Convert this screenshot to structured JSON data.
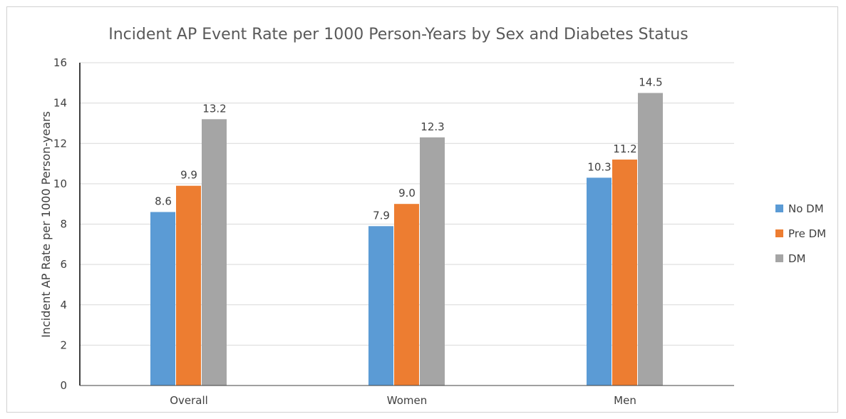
{
  "chart_data": {
    "type": "bar",
    "title": "Incident AP Event Rate per 1000 Person-Years by Sex and Diabetes Status",
    "xlabel": "",
    "ylabel": "Incident AP Rate per 1000 Person-years",
    "categories": [
      "Overall",
      "Women",
      "Men"
    ],
    "series": [
      {
        "name": "No DM",
        "color": "#5b9bd5",
        "values": [
          8.6,
          7.9,
          10.3
        ],
        "labels": [
          "8.6",
          "7.9",
          "10.3"
        ]
      },
      {
        "name": "Pre DM",
        "color": "#ed7d31",
        "values": [
          9.9,
          9.0,
          11.2
        ],
        "labels": [
          "9.9",
          "9.0",
          "11.2"
        ]
      },
      {
        "name": "DM",
        "color": "#a5a5a5",
        "values": [
          13.2,
          12.3,
          14.5
        ],
        "labels": [
          "13.2",
          "12.3",
          "14.5"
        ]
      }
    ],
    "ylim": [
      0,
      16
    ],
    "yticks": [
      "0",
      "2",
      "4",
      "6",
      "8",
      "10",
      "12",
      "14",
      "16"
    ],
    "grid": true,
    "legend_position": "right"
  }
}
